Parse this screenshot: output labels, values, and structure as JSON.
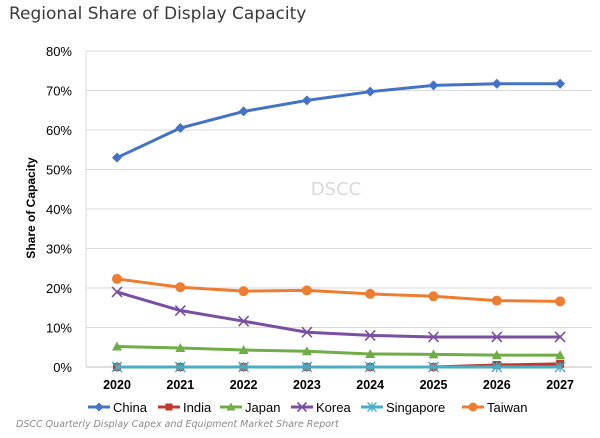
{
  "title": "Regional Share of Display Capacity",
  "source": "DSCC Quarterly Display Capex and Equipment Market Share Report",
  "watermark": "DSCC",
  "chart_data": {
    "type": "line",
    "x": [
      "2020",
      "2021",
      "2022",
      "2023",
      "2024",
      "2025",
      "2026",
      "2027"
    ],
    "ylabel": "Share of Capacity",
    "ylim": [
      0,
      80
    ],
    "yticks": [
      "0%",
      "10%",
      "20%",
      "30%",
      "40%",
      "50%",
      "60%",
      "70%",
      "80%"
    ],
    "grid": true,
    "legend": "bottom",
    "series": [
      {
        "name": "China",
        "color": "#4472c4",
        "marker": "diamond",
        "values": [
          53,
          60.5,
          64.7,
          67.5,
          69.7,
          71.3,
          71.7,
          71.7
        ]
      },
      {
        "name": "India",
        "color": "#c0392b",
        "marker": "square",
        "values": [
          0,
          0,
          0,
          0,
          0,
          0,
          0.5,
          0.8
        ]
      },
      {
        "name": "Japan",
        "color": "#70ad47",
        "marker": "triangle",
        "values": [
          5.2,
          4.8,
          4.3,
          4,
          3.3,
          3.2,
          3,
          3
        ]
      },
      {
        "name": "Korea",
        "color": "#7b4fa0",
        "marker": "x",
        "values": [
          19,
          14.3,
          11.6,
          8.8,
          8,
          7.6,
          7.6,
          7.6
        ]
      },
      {
        "name": "Singapore",
        "color": "#4bacc6",
        "marker": "star",
        "values": [
          0,
          0,
          0,
          0,
          0,
          0,
          0,
          0
        ]
      },
      {
        "name": "Taiwan",
        "color": "#ed7d31",
        "marker": "circle",
        "values": [
          22.3,
          20.2,
          19.2,
          19.4,
          18.5,
          17.9,
          16.8,
          16.6
        ]
      }
    ]
  }
}
